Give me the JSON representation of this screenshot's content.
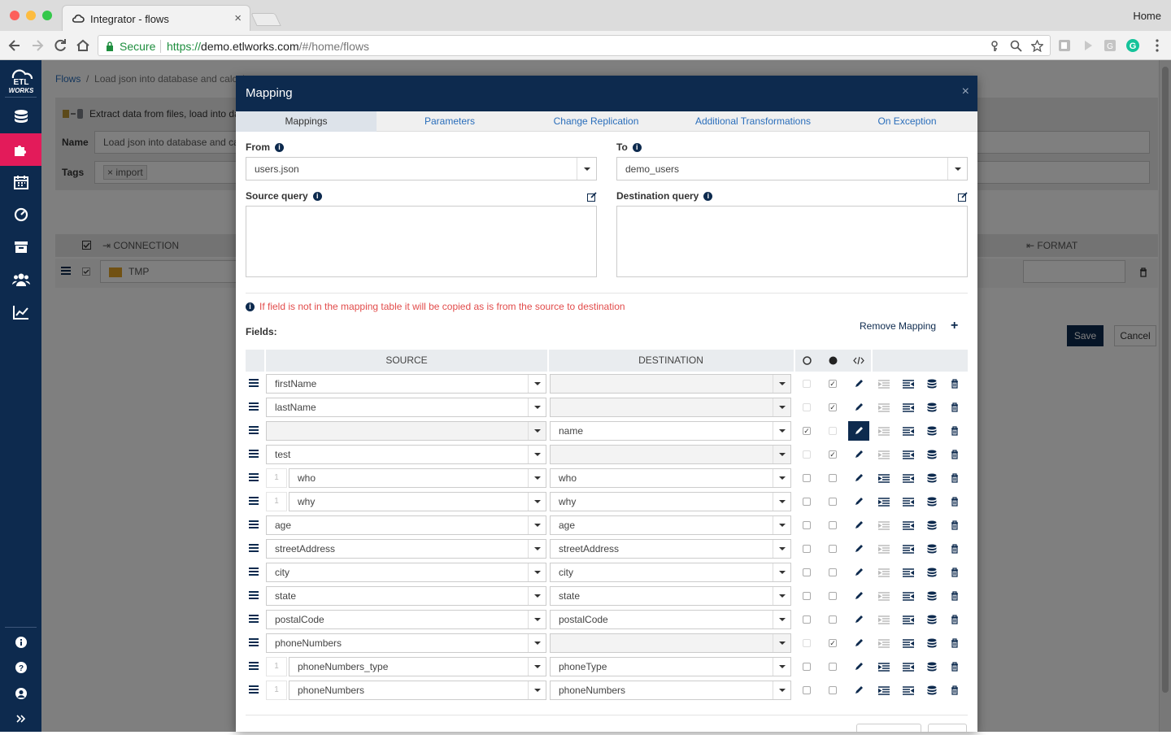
{
  "browser": {
    "tab_title": "Integrator - flows",
    "home_label": "Home",
    "secure_label": "Secure",
    "url_scheme": "https://",
    "url_host": "demo.etlworks.com",
    "url_path": "/#/home/flows"
  },
  "sidebar": {
    "logo_text": "ETL WORKS",
    "items": [
      "database-icon",
      "flows-icon",
      "calendar-icon",
      "dashboard-icon",
      "archive-icon",
      "users-icon",
      "chart-icon"
    ],
    "bottom_items": [
      "info-icon",
      "help-icon",
      "user-icon",
      "expand-icon"
    ]
  },
  "background": {
    "breadcrumb_root": "Flows",
    "breadcrumb_current": "Load json into database and calcul",
    "description": "Extract data from files, load into data",
    "name_label": "Name",
    "name_value": "Load json into database and calc",
    "tags_label": "Tags",
    "tag": "import",
    "connection_header": "CONNECTION",
    "format_header": "FORMAT",
    "connection_value": "TMP",
    "save_label": "Save",
    "cancel_label": "Cancel"
  },
  "modal": {
    "title": "Mapping",
    "tabs": [
      "Mappings",
      "Parameters",
      "Change Replication",
      "Additional Transformations",
      "On Exception"
    ],
    "active_tab": "Mappings",
    "from_label": "From",
    "from_value": "users.json",
    "to_label": "To",
    "to_value": "demo_users",
    "source_query_label": "Source query",
    "destination_query_label": "Destination query",
    "warning": "If field is not in the mapping table it will be copied as is from the source to destination",
    "fields_label": "Fields:",
    "remove_mapping_label": "Remove Mapping",
    "table_headers": {
      "source": "SOURCE",
      "destination": "DESTINATION"
    },
    "rows": [
      {
        "source": "firstName",
        "dest": "",
        "indent": false,
        "idx": "",
        "c1": false,
        "c2": true,
        "selected": false
      },
      {
        "source": "lastName",
        "dest": "",
        "indent": false,
        "idx": "",
        "c1": false,
        "c2": true,
        "selected": false
      },
      {
        "source": "",
        "dest": "name",
        "indent": false,
        "idx": "",
        "c1": true,
        "c2": false,
        "selected": true
      },
      {
        "source": "test",
        "dest": "",
        "indent": false,
        "idx": "",
        "c1": false,
        "c2": true,
        "selected": false
      },
      {
        "source": "who",
        "dest": "who",
        "indent": true,
        "idx": "1",
        "c1": false,
        "c2": false,
        "selected": false
      },
      {
        "source": "why",
        "dest": "why",
        "indent": true,
        "idx": "1",
        "c1": false,
        "c2": false,
        "selected": false
      },
      {
        "source": "age",
        "dest": "age",
        "indent": false,
        "idx": "",
        "c1": false,
        "c2": false,
        "selected": false
      },
      {
        "source": "streetAddress",
        "dest": "streetAddress",
        "indent": false,
        "idx": "",
        "c1": false,
        "c2": false,
        "selected": false
      },
      {
        "source": "city",
        "dest": "city",
        "indent": false,
        "idx": "",
        "c1": false,
        "c2": false,
        "selected": false
      },
      {
        "source": "state",
        "dest": "state",
        "indent": false,
        "idx": "",
        "c1": false,
        "c2": false,
        "selected": false
      },
      {
        "source": "postalCode",
        "dest": "postalCode",
        "indent": false,
        "idx": "",
        "c1": false,
        "c2": false,
        "selected": false
      },
      {
        "source": "phoneNumbers",
        "dest": "",
        "indent": false,
        "idx": "",
        "c1": false,
        "c2": true,
        "selected": false
      },
      {
        "source": "phoneNumbers_type",
        "dest": "phoneType",
        "indent": true,
        "idx": "1",
        "c1": false,
        "c2": false,
        "selected": false
      },
      {
        "source": "phoneNumbers",
        "dest": "phoneNumbers",
        "indent": true,
        "idx": "1",
        "c1": false,
        "c2": false,
        "selected": false
      }
    ]
  },
  "colors": {
    "navy": "#0d2a4e",
    "accent": "#e31b5a",
    "link": "#2a6ebb",
    "warning": "#e24c4b"
  }
}
